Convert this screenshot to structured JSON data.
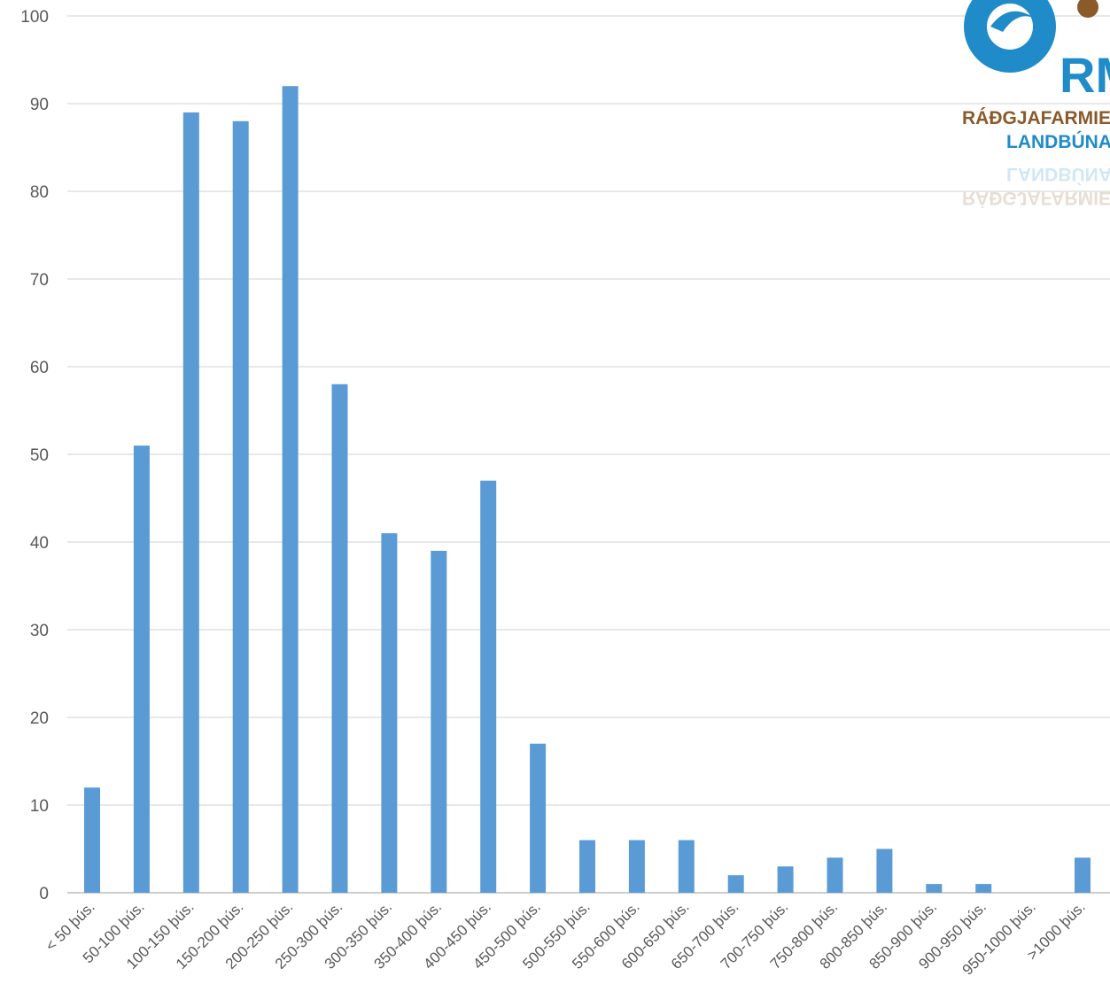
{
  "chart_data": {
    "type": "bar",
    "title": "",
    "xlabel": "",
    "ylabel": "",
    "ylim": [
      0,
      100
    ],
    "yticks": [
      0,
      10,
      20,
      30,
      40,
      50,
      60,
      70,
      80,
      90,
      100
    ],
    "grid": true,
    "legend": "none",
    "bar_color": "#5b9bd5",
    "categories": [
      "< 50 þús.",
      "50-100 þús.",
      "100-150 þús.",
      "150-200 þús.",
      "200-250 þús.",
      "250-300 þús.",
      "300-350 þús.",
      "350-400 þús.",
      "400-450 þús.",
      "450-500 þús.",
      "500-550 þús.",
      "550-600 þús.",
      "600-650 þús.",
      "650-700 þús.",
      "700-750 þús.",
      "750-800 þús.",
      "800-850 þús.",
      "850-900 þús.",
      "900-950 þús.",
      "950-1000 þús.",
      ">1000 þús."
    ],
    "values": [
      12,
      51,
      89,
      88,
      92,
      58,
      41,
      39,
      47,
      17,
      6,
      6,
      6,
      2,
      3,
      4,
      5,
      1,
      1,
      0,
      4
    ]
  },
  "logo": {
    "letters": "RM",
    "line1": "RÁÐGJAFARMIE",
    "line2": "LANDBÚNA",
    "primary_color": "#1f8bc9",
    "secondary_color": "#8a5a2b"
  }
}
